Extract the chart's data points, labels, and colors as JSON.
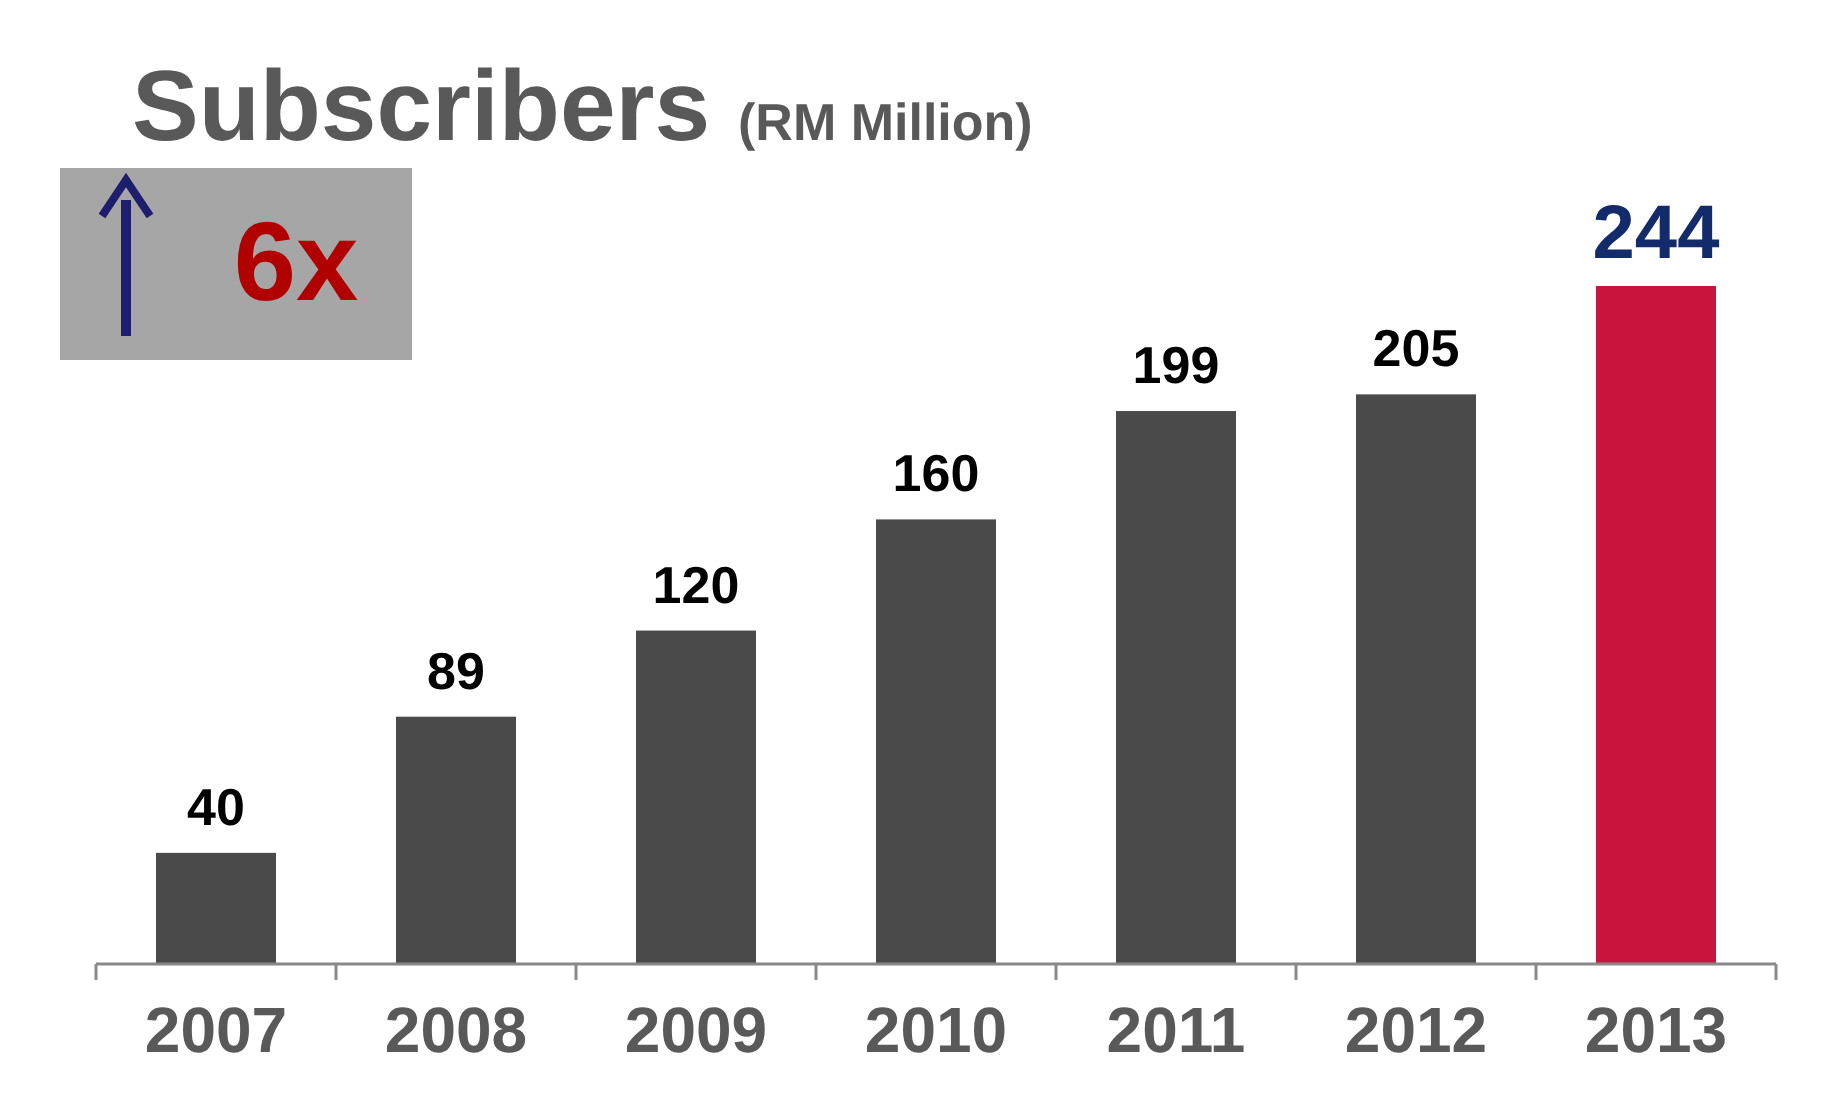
{
  "chart_data": {
    "type": "bar",
    "title": "Subscribers",
    "subtitle": "(RM Million)",
    "categories": [
      "2007",
      "2008",
      "2009",
      "2010",
      "2011",
      "2012",
      "2013"
    ],
    "values": [
      40,
      89,
      120,
      160,
      199,
      205,
      244
    ],
    "colors": [
      "#4a4a4a",
      "#4a4a4a",
      "#4a4a4a",
      "#4a4a4a",
      "#4a4a4a",
      "#4a4a4a",
      "#c8143e"
    ],
    "data_labels": true,
    "annotations": [
      "6x"
    ],
    "grid": false
  }
}
